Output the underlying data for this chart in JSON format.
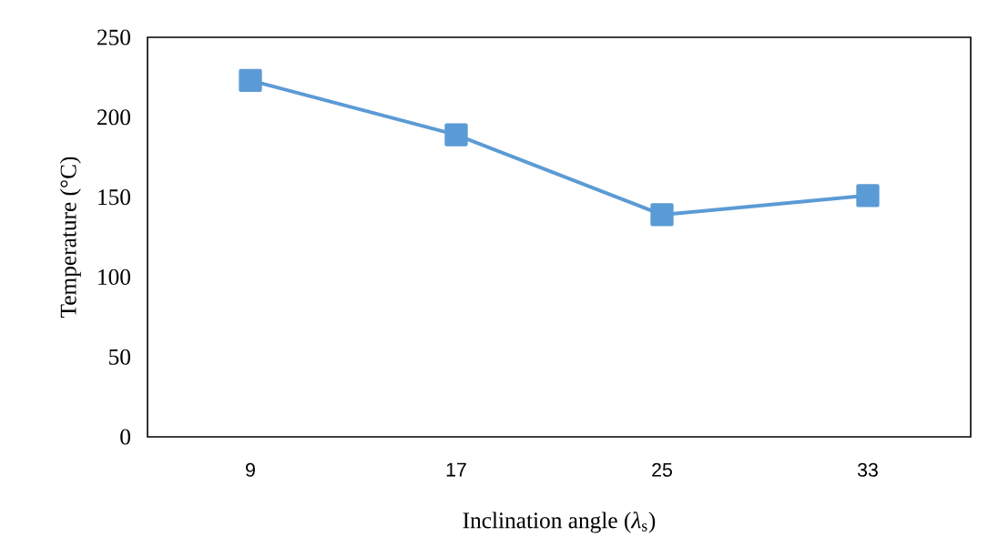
{
  "chart_data": {
    "type": "line",
    "xlabel": "Inclination angle (*λ*$_{s}$)",
    "ylabel": "Temperature (°C)",
    "categories": [
      "9",
      "17",
      "25",
      "33"
    ],
    "series": [
      {
        "color": "#5b9bd5",
        "values": [
          223,
          189,
          139,
          151
        ]
      }
    ],
    "ylim": [
      0,
      250
    ],
    "yticks": [
      0,
      50,
      100,
      150,
      200,
      250
    ],
    "marker": "square",
    "line_style": "solid",
    "grid": false
  }
}
